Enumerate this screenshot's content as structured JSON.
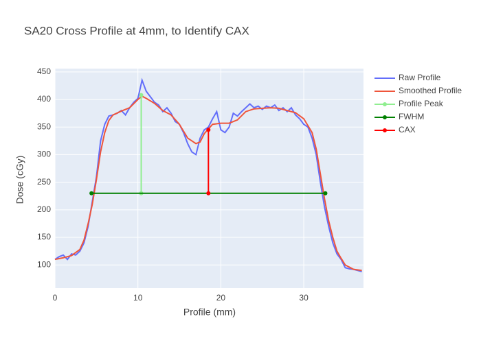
{
  "chart_data": {
    "type": "line",
    "title": "SA20 Cross Profile at 4mm, to Identify CAX",
    "x_label": "Profile (mm)",
    "y_label": "Dose (cGy)",
    "xlim": [
      0,
      37.2
    ],
    "ylim": [
      58,
      456
    ],
    "xticks": [
      0,
      10,
      20,
      30
    ],
    "yticks": [
      100,
      150,
      200,
      250,
      300,
      350,
      400,
      450
    ],
    "grid": true,
    "legend": "right",
    "series": [
      {
        "name": "Raw Profile",
        "color": "#636efa",
        "mode": "lines",
        "x": [
          0,
          0.5,
          1,
          1.5,
          2,
          2.5,
          3,
          3.5,
          4,
          4.5,
          5,
          5.5,
          6,
          6.5,
          7,
          7.5,
          8,
          8.5,
          9,
          9.5,
          10,
          10.5,
          11,
          11.5,
          12,
          12.5,
          13,
          13.5,
          14,
          14.5,
          15,
          15.5,
          16,
          16.5,
          17,
          17.5,
          18,
          18.5,
          19,
          19.5,
          20,
          20.5,
          21,
          21.5,
          22,
          22.5,
          23,
          23.5,
          24,
          24.5,
          25,
          25.5,
          26,
          26.5,
          27,
          27.5,
          28,
          28.5,
          29,
          29.5,
          30,
          30.5,
          31,
          31.5,
          32,
          32.5,
          33,
          33.5,
          34,
          34.5,
          35,
          35.5,
          36,
          36.5,
          37
        ],
        "values": [
          110,
          115,
          118,
          110,
          120,
          118,
          125,
          140,
          170,
          215,
          260,
          325,
          355,
          370,
          372,
          375,
          380,
          372,
          385,
          395,
          402,
          435,
          415,
          405,
          395,
          390,
          378,
          385,
          375,
          360,
          355,
          340,
          320,
          305,
          300,
          330,
          345,
          350,
          365,
          378,
          345,
          340,
          350,
          375,
          370,
          378,
          385,
          392,
          385,
          388,
          382,
          388,
          385,
          390,
          380,
          385,
          378,
          385,
          372,
          365,
          355,
          350,
          330,
          300,
          250,
          205,
          170,
          140,
          120,
          110,
          95,
          93,
          92,
          90,
          88
        ]
      },
      {
        "name": "Smoothed Profile",
        "color": "#ef553b",
        "mode": "lines",
        "x": [
          0,
          1,
          2,
          3,
          3.5,
          4,
          4.5,
          5,
          5.5,
          6,
          6.5,
          7,
          8,
          9,
          10,
          10.5,
          11,
          12,
          13,
          14,
          15,
          16,
          17,
          17.5,
          18,
          19,
          20,
          21,
          22,
          23,
          24,
          25,
          26,
          27,
          28,
          29,
          30,
          31,
          31.5,
          32,
          32.5,
          33,
          33.5,
          34,
          34.5,
          35,
          36,
          37
        ],
        "values": [
          110,
          113,
          117,
          128,
          145,
          175,
          210,
          255,
          305,
          340,
          362,
          372,
          379,
          385,
          400,
          406,
          402,
          393,
          380,
          372,
          355,
          330,
          320,
          323,
          338,
          355,
          357,
          357,
          363,
          378,
          383,
          384,
          385,
          384,
          380,
          376,
          365,
          340,
          310,
          265,
          220,
          180,
          150,
          125,
          112,
          100,
          92,
          90
        ]
      },
      {
        "name": "Profile Peak",
        "color": "#90ee90",
        "mode": "lines+markers",
        "x": [
          10.4,
          10.4
        ],
        "values": [
          230,
          408
        ]
      },
      {
        "name": "FWHM",
        "color": "#008000",
        "mode": "lines+markers",
        "x": [
          4.4,
          32.6
        ],
        "values": [
          230,
          230
        ]
      },
      {
        "name": "CAX",
        "color": "#ff0000",
        "mode": "lines+markers",
        "x": [
          18.5,
          18.5
        ],
        "values": [
          230,
          345
        ]
      }
    ]
  }
}
